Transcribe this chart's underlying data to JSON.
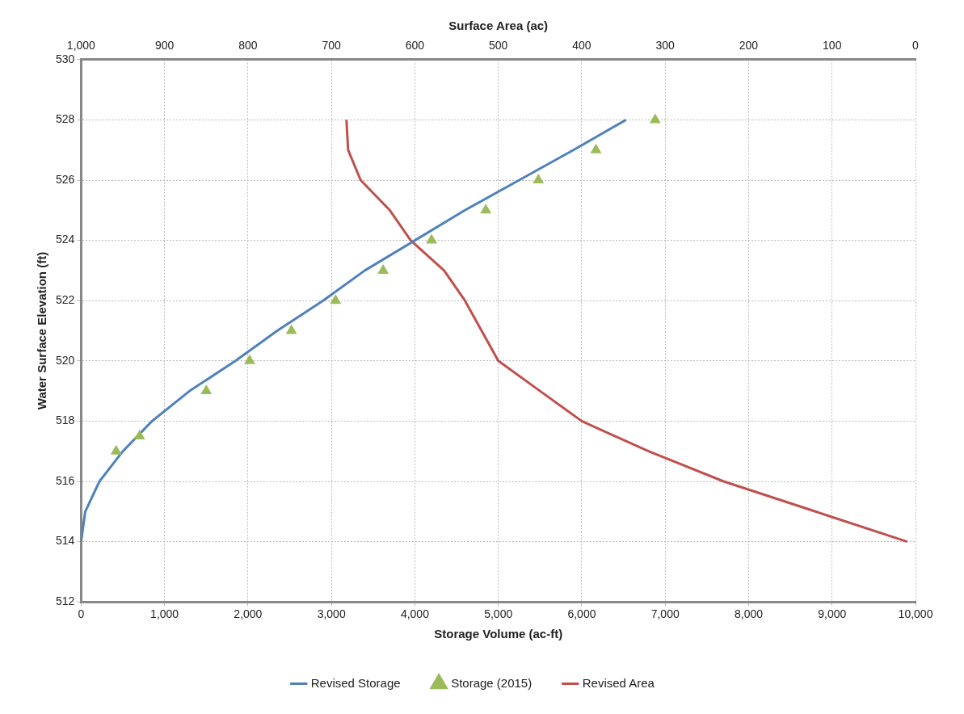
{
  "chart_data": {
    "type": "line",
    "xlabel": "Storage Volume (ac-ft)",
    "x2label": "Surface Area (ac)",
    "ylabel": "Water Surface Elevation (ft)",
    "xlim": [
      0,
      10000
    ],
    "xticks": [
      0,
      {
        "value": 1000,
        "label": "1,000"
      },
      {
        "value": 2000,
        "label": "2,000"
      },
      {
        "value": 3000,
        "label": "3,000"
      },
      {
        "value": 4000,
        "label": "4,000"
      },
      {
        "value": 5000,
        "label": "5,000"
      },
      {
        "value": 6000,
        "label": "6,000"
      },
      {
        "value": 7000,
        "label": "7,000"
      },
      {
        "value": 8000,
        "label": "8,000"
      },
      {
        "value": 9000,
        "label": "9,000"
      },
      {
        "value": 10000,
        "label": "10,000"
      }
    ],
    "x2lim": [
      1000,
      0
    ],
    "x2ticks": [
      {
        "value": 1000,
        "label": "1,000"
      },
      900,
      800,
      700,
      600,
      500,
      400,
      300,
      200,
      100,
      0
    ],
    "ylim": [
      512,
      530
    ],
    "yticks": [
      512,
      514,
      516,
      518,
      520,
      522,
      524,
      526,
      528,
      530
    ],
    "grid": true,
    "legend": "bottom",
    "series": [
      {
        "name": "Revised Storage",
        "color": "#4f81bd",
        "x": [
          0,
          50,
          220,
          500,
          850,
          1300,
          1850,
          2350,
          2900,
          3400,
          4000,
          4600,
          5250,
          5900,
          6530
        ],
        "values": [
          514,
          515,
          516,
          517,
          518,
          519,
          520,
          521,
          522,
          523,
          524,
          525,
          526,
          527,
          528
        ]
      },
      {
        "name": "Storage (2015)",
        "type": "scatter",
        "marker": "triangle",
        "color": "#9bbb59",
        "x": [
          420,
          700,
          1500,
          2020,
          2520,
          3050,
          3620,
          4200,
          4850,
          5480,
          6170,
          6880
        ],
        "values": [
          517,
          517.5,
          519,
          520,
          521,
          522,
          523,
          524,
          525,
          526,
          527,
          528
        ]
      },
      {
        "name": "Revised Area",
        "axis": "x2",
        "color": "#c0504d",
        "x": [
          10,
          120,
          230,
          320,
          400,
          450,
          500,
          520,
          540,
          565,
          605,
          630,
          665,
          680,
          682
        ],
        "values": [
          514,
          515,
          516,
          517,
          518,
          519,
          520,
          521,
          522,
          523,
          524,
          525,
          526,
          527,
          528
        ]
      }
    ]
  }
}
